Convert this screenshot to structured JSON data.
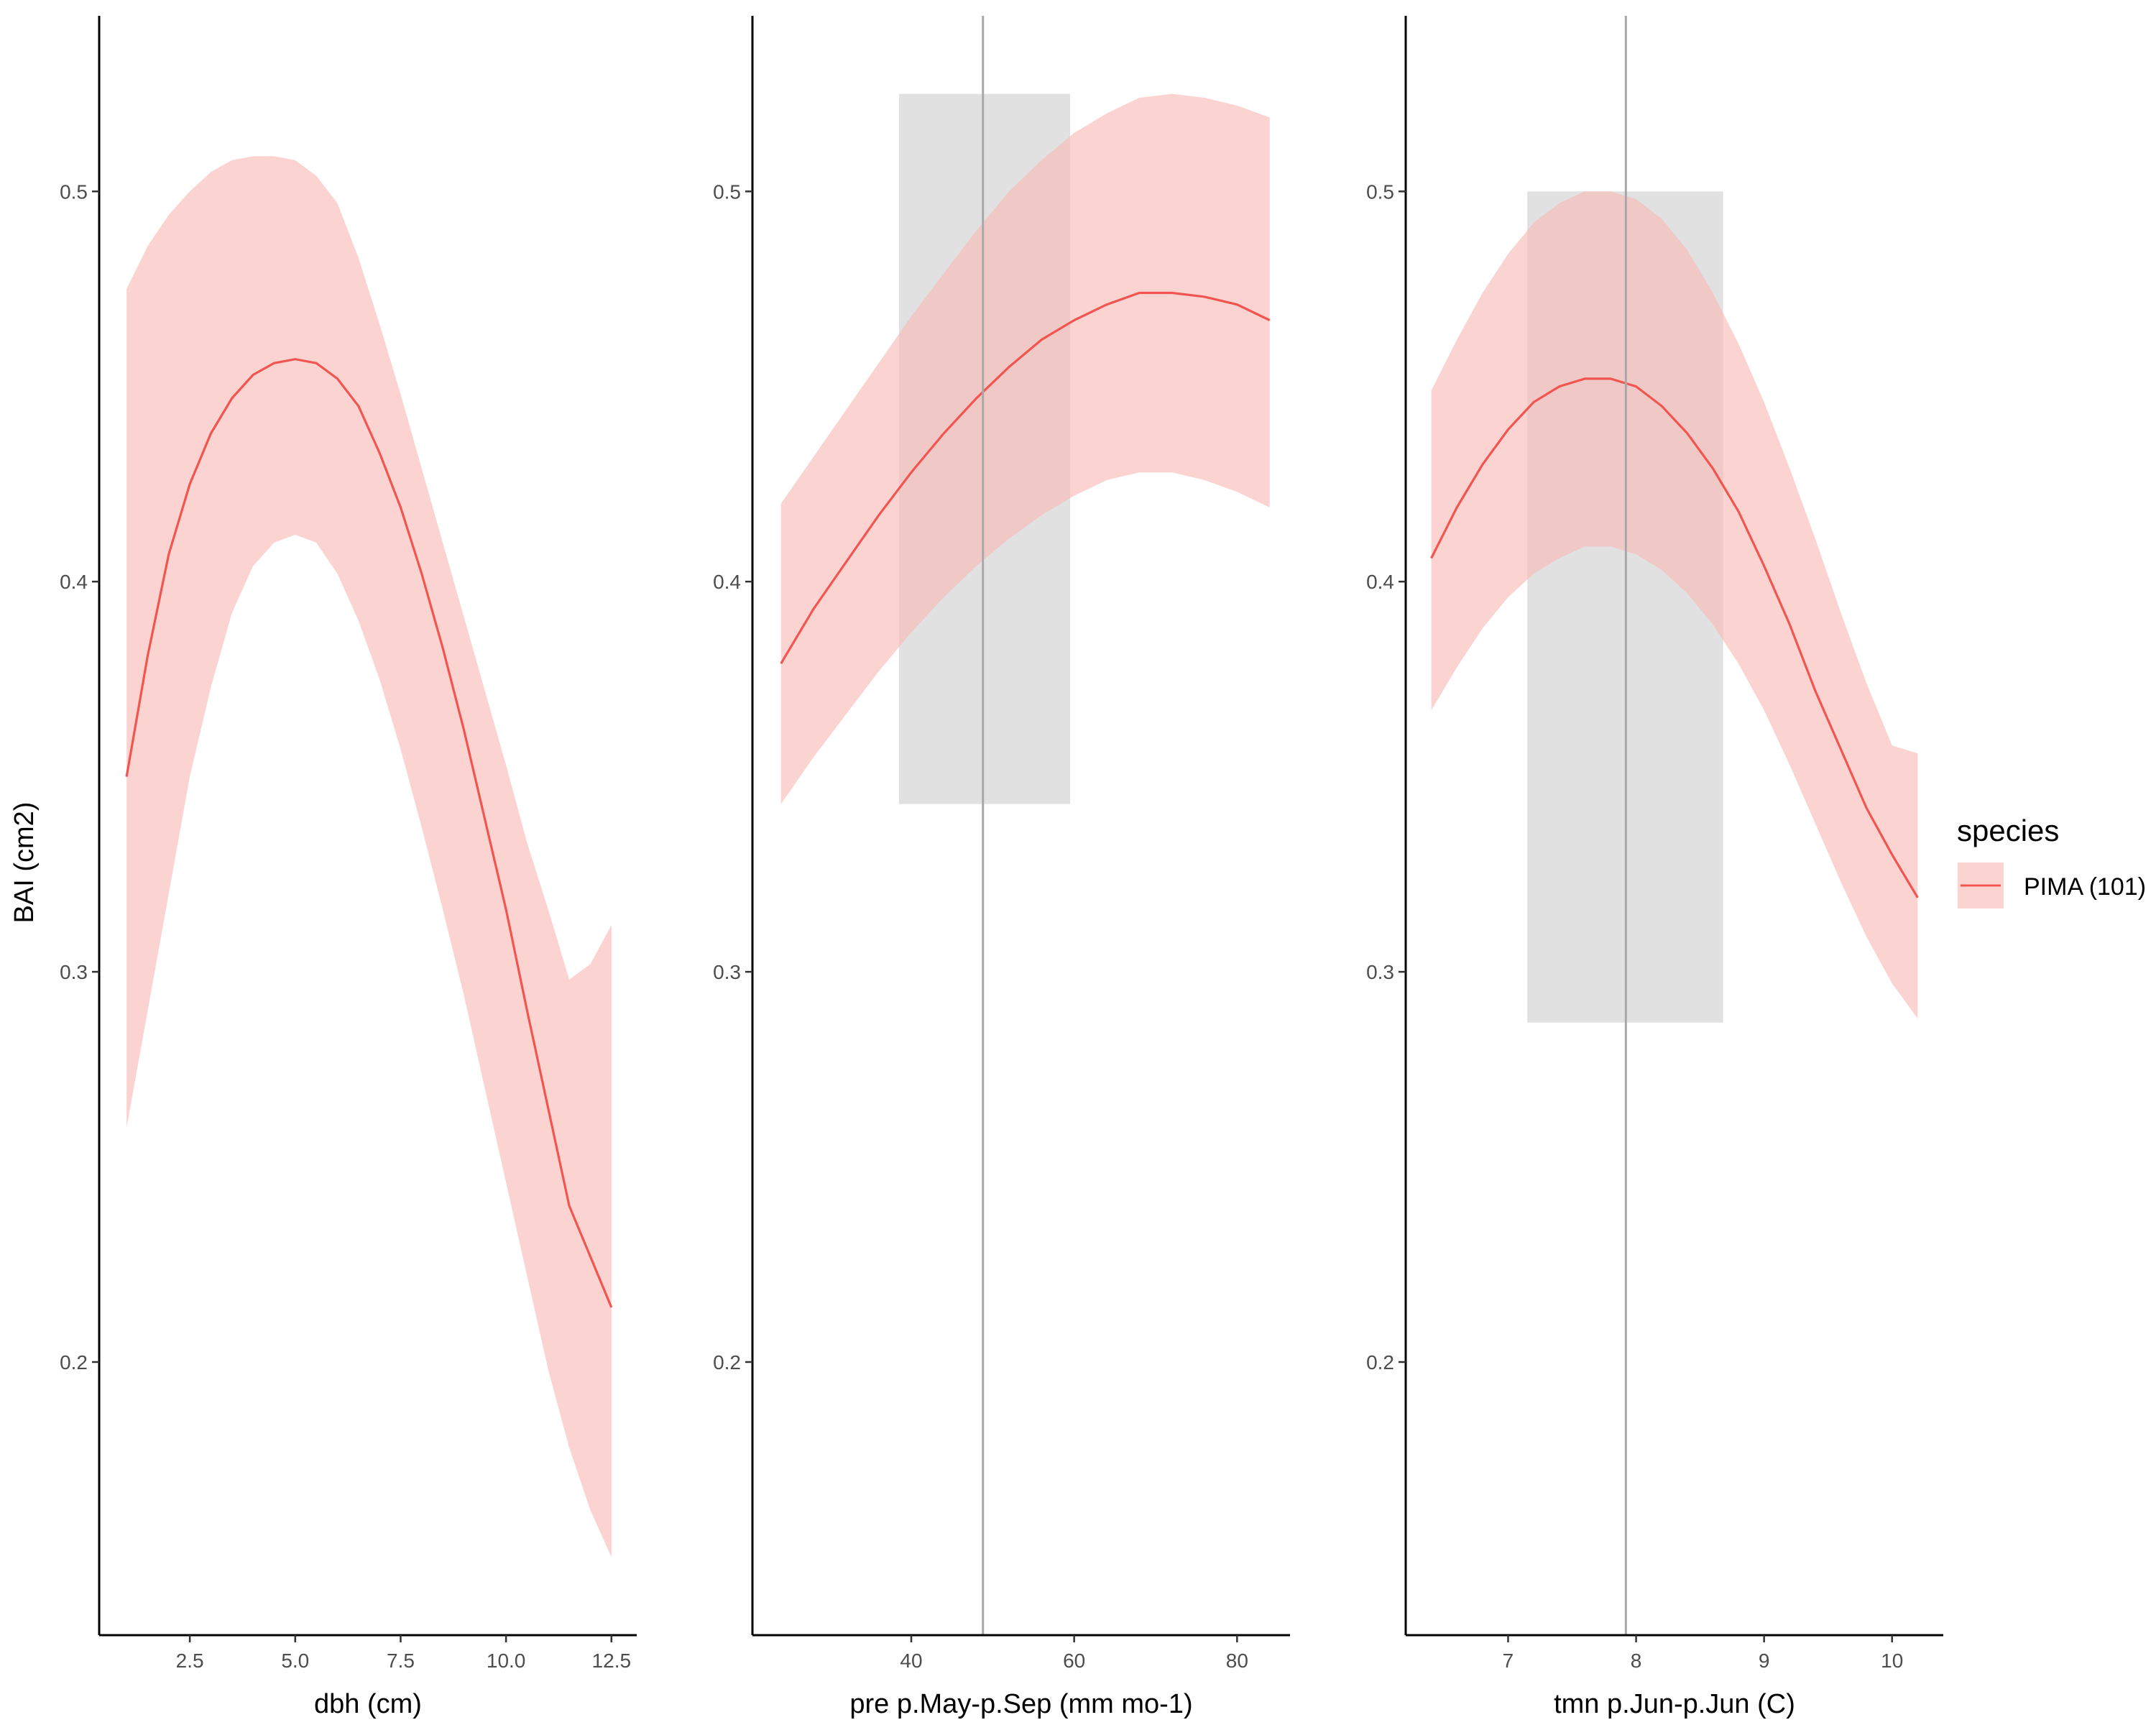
{
  "colors": {
    "curve": "#f25550",
    "ribbon": "#f8b9b6",
    "highlight": "#c9c9c9",
    "vline": "#a8a8a8",
    "axis": "#000000"
  },
  "shared_y": {
    "label": "BAI (cm2)",
    "ticks": [
      0.2,
      0.3,
      0.4,
      0.5
    ],
    "tick_labels": [
      "0.2",
      "0.3",
      "0.4",
      "0.5"
    ],
    "ylim": [
      0.13,
      0.545
    ]
  },
  "legend": {
    "title": "species",
    "items": [
      {
        "label": "PIMA (101)"
      }
    ]
  },
  "chart_data": [
    {
      "type": "line",
      "xlabel": "dbh  (cm)",
      "xlim": [
        0.35,
        13.1
      ],
      "ylim": [
        0.13,
        0.545
      ],
      "x_ticks": [
        2.5,
        5.0,
        7.5,
        10.0,
        12.5
      ],
      "x_tick_labels": [
        "2.5",
        "5.0",
        "7.5",
        "10.0",
        "12.5"
      ],
      "series": [
        {
          "x": [
            1.0,
            1.5,
            2.0,
            2.5,
            3.0,
            3.5,
            4.0,
            4.5,
            5.0,
            5.5,
            6.0,
            6.5,
            7.0,
            7.5,
            8.0,
            8.5,
            9.0,
            9.5,
            10.0,
            10.5,
            11.0,
            11.5,
            12.0,
            12.5
          ],
          "y": [
            0.35,
            0.381,
            0.407,
            0.425,
            0.438,
            0.447,
            0.453,
            0.456,
            0.457,
            0.456,
            0.452,
            0.445,
            0.433,
            0.419,
            0.402,
            0.383,
            0.362,
            0.339,
            0.316,
            0.29,
            0.265,
            0.24,
            0.227,
            0.214
          ],
          "lower": [
            0.26,
            0.29,
            0.32,
            0.35,
            0.373,
            0.392,
            0.404,
            0.41,
            0.412,
            0.41,
            0.402,
            0.39,
            0.375,
            0.357,
            0.337,
            0.316,
            0.294,
            0.27,
            0.246,
            0.222,
            0.198,
            0.178,
            0.162,
            0.15
          ],
          "upper": [
            0.475,
            0.486,
            0.494,
            0.5,
            0.505,
            0.508,
            0.509,
            0.509,
            0.508,
            0.504,
            0.497,
            0.483,
            0.466,
            0.448,
            0.429,
            0.41,
            0.391,
            0.372,
            0.353,
            0.333,
            0.316,
            0.298,
            0.302,
            0.312
          ]
        }
      ]
    },
    {
      "type": "line",
      "xlabel": "pre p.May-p.Sep (mm mo-1)",
      "xlim": [
        20.5,
        86.5
      ],
      "ylim": [
        0.13,
        0.545
      ],
      "x_ticks": [
        40,
        60,
        80
      ],
      "x_tick_labels": [
        "40",
        "60",
        "80"
      ],
      "vline": 48.8,
      "highlight_x": [
        38.5,
        59.5
      ],
      "highlight_y": [
        0.343,
        0.525
      ],
      "series": [
        {
          "x": [
            24,
            28,
            32,
            36,
            40,
            44,
            48,
            52,
            56,
            60,
            64,
            68,
            72,
            76,
            80,
            84
          ],
          "y": [
            0.379,
            0.393,
            0.405,
            0.417,
            0.428,
            0.438,
            0.447,
            0.455,
            0.462,
            0.467,
            0.471,
            0.474,
            0.474,
            0.473,
            0.471,
            0.467
          ],
          "lower": [
            0.343,
            0.355,
            0.366,
            0.377,
            0.387,
            0.396,
            0.404,
            0.411,
            0.417,
            0.422,
            0.426,
            0.428,
            0.428,
            0.426,
            0.423,
            0.419
          ],
          "upper": [
            0.42,
            0.432,
            0.444,
            0.456,
            0.468,
            0.479,
            0.49,
            0.5,
            0.508,
            0.515,
            0.52,
            0.524,
            0.525,
            0.524,
            0.522,
            0.519
          ]
        }
      ]
    },
    {
      "type": "line",
      "xlabel": "tmn p.Jun-p.Jun (C)",
      "xlim": [
        6.2,
        10.4
      ],
      "ylim": [
        0.13,
        0.545
      ],
      "x_ticks": [
        7,
        8,
        9,
        10
      ],
      "x_tick_labels": [
        "7",
        "8",
        "9",
        "10"
      ],
      "vline": 7.92,
      "highlight_x": [
        7.15,
        8.68
      ],
      "highlight_y": [
        0.287,
        0.5
      ],
      "series": [
        {
          "x": [
            6.4,
            6.6,
            6.8,
            7.0,
            7.2,
            7.4,
            7.6,
            7.8,
            8.0,
            8.2,
            8.4,
            8.6,
            8.8,
            9.0,
            9.2,
            9.4,
            9.6,
            9.8,
            10.0,
            10.2
          ],
          "y": [
            0.406,
            0.419,
            0.43,
            0.439,
            0.446,
            0.45,
            0.452,
            0.452,
            0.45,
            0.445,
            0.438,
            0.429,
            0.418,
            0.404,
            0.389,
            0.372,
            0.357,
            0.342,
            0.33,
            0.319
          ],
          "lower": [
            0.367,
            0.378,
            0.388,
            0.396,
            0.402,
            0.406,
            0.409,
            0.409,
            0.407,
            0.403,
            0.397,
            0.389,
            0.379,
            0.367,
            0.353,
            0.338,
            0.323,
            0.309,
            0.297,
            0.288
          ],
          "upper": [
            0.449,
            0.462,
            0.474,
            0.484,
            0.492,
            0.497,
            0.5,
            0.5,
            0.498,
            0.493,
            0.485,
            0.474,
            0.461,
            0.446,
            0.429,
            0.411,
            0.392,
            0.374,
            0.358,
            0.356
          ]
        }
      ]
    }
  ]
}
